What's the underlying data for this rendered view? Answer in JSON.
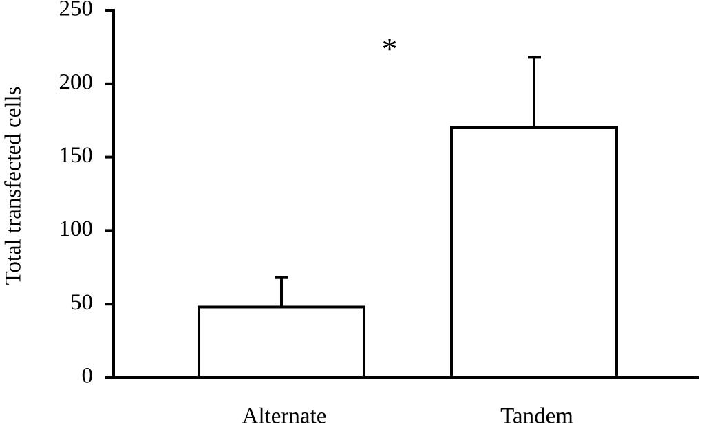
{
  "chart_data": {
    "type": "bar",
    "y_label": "Total transfected cells",
    "annotation": "*",
    "categories": [
      "Alternate",
      "Tandem"
    ],
    "values": [
      48,
      170
    ],
    "errors": [
      20,
      48
    ],
    "color": "#ffffff",
    "ylim": [
      0,
      250
    ],
    "yticks": [
      0,
      50,
      100,
      150,
      200,
      250
    ],
    "grid": false
  }
}
